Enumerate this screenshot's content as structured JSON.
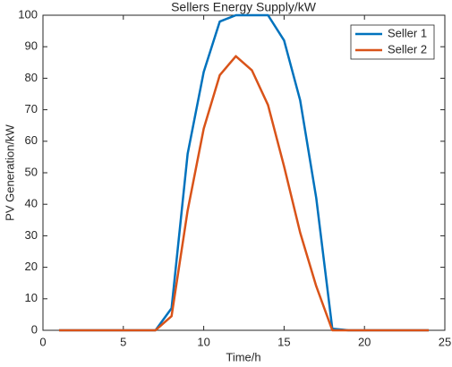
{
  "chart_data": {
    "type": "line",
    "title": "Sellers Energy Supply/kW",
    "x_label": "Time/h",
    "y_label": "PV Generation/kW",
    "x": [
      1,
      2,
      3,
      4,
      5,
      6,
      7,
      8,
      9,
      10,
      11,
      12,
      13,
      14,
      15,
      16,
      17,
      18,
      19,
      20,
      21,
      22,
      23,
      24
    ],
    "series": [
      {
        "name": "Seller 1",
        "color": "#0072bd",
        "values": [
          0,
          0,
          0,
          0,
          0,
          0,
          0,
          7,
          56,
          82,
          98,
          100,
          100,
          100,
          92,
          73,
          42,
          0.5,
          0,
          0,
          0,
          0,
          0,
          0
        ]
      },
      {
        "name": "Seller 2",
        "color": "#d95319",
        "values": [
          0,
          0,
          0,
          0,
          0,
          0,
          0,
          4.5,
          38,
          64,
          81,
          87,
          82.5,
          71.5,
          52,
          31,
          14,
          0,
          0,
          0,
          0,
          0,
          0,
          0
        ]
      }
    ],
    "xlim": [
      0,
      25
    ],
    "xticks": [
      0,
      5,
      10,
      15,
      20,
      25
    ],
    "ylim": [
      0,
      100
    ],
    "yticks": [
      0,
      10,
      20,
      30,
      40,
      50,
      60,
      70,
      80,
      90,
      100
    ],
    "legend": "top-right"
  }
}
